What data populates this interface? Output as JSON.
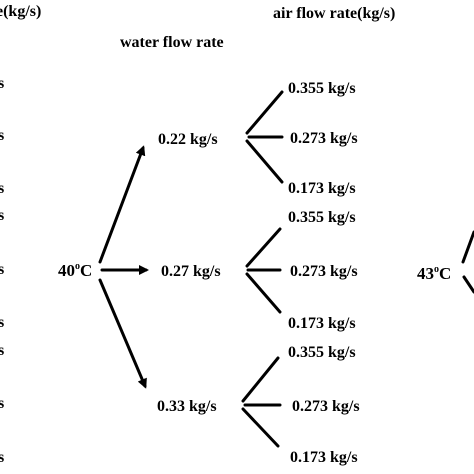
{
  "headers": {
    "left_partial": "e(kg/s)",
    "air_flow": "air flow rate(kg/s)",
    "water_flow": "water flow rate"
  },
  "left_fragments": [
    "s",
    "s",
    "s",
    "s",
    "s",
    "s",
    "s",
    "s",
    "s"
  ],
  "temp_start": {
    "value": "40",
    "sup": "o",
    "unit": "C"
  },
  "temp_end": {
    "value": "43",
    "sup": "o",
    "unit": "C"
  },
  "water_rates": [
    "0.22 kg/s",
    "0.27 kg/s",
    "0.33 kg/s"
  ],
  "air_rates": [
    [
      "0.355 kg/s",
      "0.273 kg/s",
      "0.173 kg/s"
    ],
    [
      "0.355 kg/s",
      "0.273 kg/s",
      "0.173 kg/s"
    ],
    [
      "0.355 kg/s",
      "0.273 kg/s",
      "0.173 kg/s"
    ]
  ]
}
